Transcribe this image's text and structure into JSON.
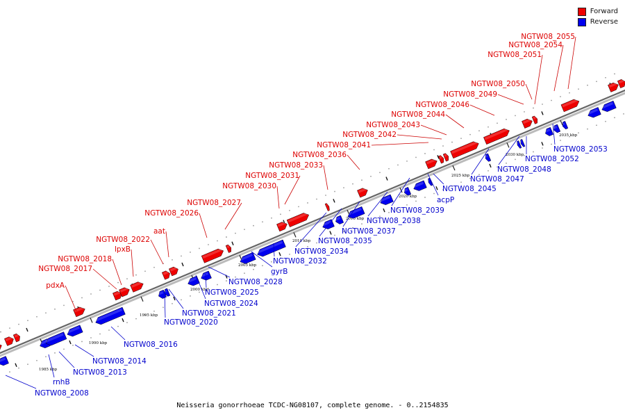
{
  "legend": {
    "forward": {
      "label": "Forward",
      "color": "#ee0000"
    },
    "reverse": {
      "label": "Reverse",
      "color": "#0000ee"
    }
  },
  "caption": "Neisseria gonorrhoeae TCDC-NG08107, complete genome. - 0..2154835",
  "ticks": [
    "1985 kbp",
    "1990 kbp",
    "1995 kbp",
    "2000 kbp",
    "2005 kbp",
    "2010 kbp",
    "2015 kbp",
    "2020 kbp",
    "2025 kbp",
    "2030 kbp",
    "2035 kbp"
  ],
  "genes_forward": [
    {
      "name": "pdxA"
    },
    {
      "name": "NGTW08_2017"
    },
    {
      "name": "NGTW08_2018"
    },
    {
      "name": "lpxB"
    },
    {
      "name": "NGTW08_2022"
    },
    {
      "name": "aat"
    },
    {
      "name": "NGTW08_2026"
    },
    {
      "name": "NGTW08_2027"
    },
    {
      "name": "NGTW08_2030"
    },
    {
      "name": "NGTW08_2031"
    },
    {
      "name": "NGTW08_2033"
    },
    {
      "name": "NGTW08_2036"
    },
    {
      "name": "NGTW08_2041"
    },
    {
      "name": "NGTW08_2042"
    },
    {
      "name": "NGTW08_2043"
    },
    {
      "name": "NGTW08_2044"
    },
    {
      "name": "NGTW08_2046"
    },
    {
      "name": "NGTW08_2049"
    },
    {
      "name": "NGTW08_2050"
    },
    {
      "name": "NGTW08_2051"
    },
    {
      "name": "NGTW08_2054"
    },
    {
      "name": "NGTW08_2055"
    }
  ],
  "genes_reverse": [
    {
      "name": "NGTW08_2008"
    },
    {
      "name": "rnhB"
    },
    {
      "name": "NGTW08_2013"
    },
    {
      "name": "NGTW08_2014"
    },
    {
      "name": "NGTW08_2016"
    },
    {
      "name": "NGTW08_2020"
    },
    {
      "name": "NGTW08_2021"
    },
    {
      "name": "NGTW08_2024"
    },
    {
      "name": "NGTW08_2025"
    },
    {
      "name": "NGTW08_2028"
    },
    {
      "name": "gyrB"
    },
    {
      "name": "NGTW08_2032"
    },
    {
      "name": "NGTW08_2034"
    },
    {
      "name": "NGTW08_2035"
    },
    {
      "name": "NGTW08_2037"
    },
    {
      "name": "NGTW08_2038"
    },
    {
      "name": "NGTW08_2039"
    },
    {
      "name": "acpP"
    },
    {
      "name": "NGTW08_2045"
    },
    {
      "name": "NGTW08_2047"
    },
    {
      "name": "NGTW08_2048"
    },
    {
      "name": "NGTW08_2052"
    },
    {
      "name": "NGTW08_2053"
    }
  ]
}
